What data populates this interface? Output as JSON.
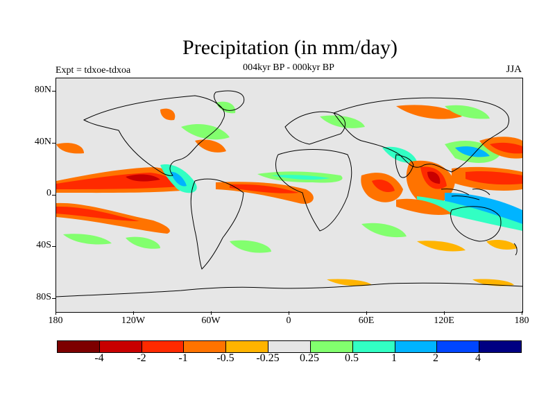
{
  "header": {
    "title": "Precipitation (in mm/day)",
    "subtitle": "004kyr BP - 000kyr BP",
    "expt_label": "Expt = tdxoe-tdxoa",
    "season": "JJA"
  },
  "map": {
    "background_color": "#e6e6e6",
    "lat_ticks": [
      "80N",
      "40N",
      "0",
      "40S",
      "80S"
    ],
    "lon_ticks": [
      "180",
      "120W",
      "60W",
      "0",
      "60E",
      "120E",
      "180"
    ]
  },
  "colorbar": {
    "colors": [
      "#7d0000",
      "#c80000",
      "#ff2a00",
      "#ff7300",
      "#ffb400",
      "#e6e6e6",
      "#82ff6e",
      "#32ffc3",
      "#00b4ff",
      "#0046ff",
      "#000082"
    ],
    "labels": [
      "-4",
      "-2",
      "-1",
      "-0.5",
      "-0.25",
      "0.25",
      "0.5",
      "1",
      "2",
      "4"
    ]
  }
}
